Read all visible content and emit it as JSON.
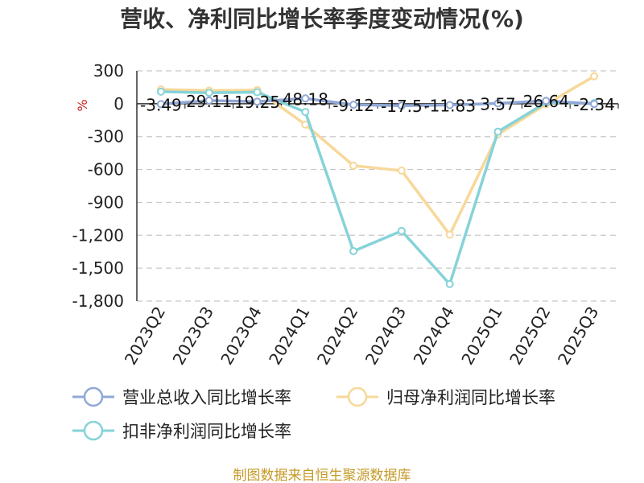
{
  "chart_data": {
    "type": "line",
    "title": "营收、净利同比增长率季度变动情况(%)",
    "ylabel": "%",
    "categories": [
      "2023Q2",
      "2023Q3",
      "2023Q4",
      "2024Q1",
      "2024Q2",
      "2024Q3",
      "2024Q4",
      "2025Q1",
      "2025Q2",
      "2025Q3"
    ],
    "ylim": [
      -1800,
      300
    ],
    "yticks": [
      300,
      0,
      -300,
      -600,
      -900,
      -1200,
      -1500,
      -1800
    ],
    "ytick_labels": [
      "300",
      "0",
      "-300",
      "-600",
      "-900",
      "-1,200",
      "-1,500",
      "-1,800"
    ],
    "grid": true,
    "legend_position": "bottom",
    "series": [
      {
        "name": "营业总收入同比增长率",
        "color": "#90a8d6",
        "values": [
          -3.49,
          29.11,
          19.25,
          48.18,
          -9.12,
          -17.5,
          -11.83,
          3.57,
          26.64,
          -2.34
        ],
        "labels": [
          "-3.49",
          "29.11",
          "19.25",
          "48.18",
          "-9.12",
          "-17.5",
          "-11.83",
          "3.57",
          "26.64",
          "-2.34"
        ]
      },
      {
        "name": "归母净利润同比增长率",
        "color": "#f7d89a",
        "values": [
          130,
          120,
          125,
          -190,
          -565,
          -610,
          -1195,
          -280,
          -5,
          250
        ]
      },
      {
        "name": "扣非净利润同比增长率",
        "color": "#86d3d8",
        "values": [
          110,
          100,
          105,
          -75,
          -1345,
          -1160,
          -1645,
          -255,
          10,
          5
        ]
      }
    ]
  },
  "footer": {
    "source": "制图数据来自恒生聚源数据库"
  }
}
